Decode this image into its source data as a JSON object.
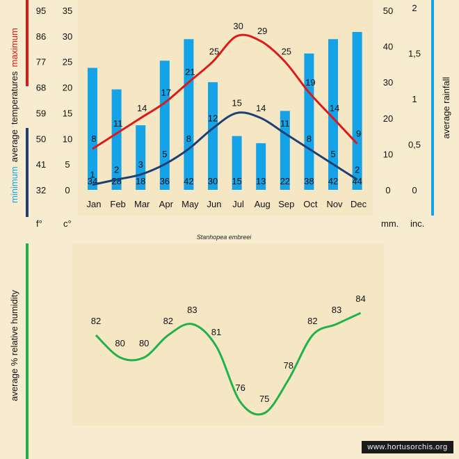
{
  "chart_data": [
    {
      "type": "bar",
      "title": "",
      "categories": [
        "Jan",
        "Feb",
        "Mar",
        "Apr",
        "May",
        "Jun",
        "Jul",
        "Aug",
        "Sep",
        "Oct",
        "Nov",
        "Dec"
      ],
      "rainfall": {
        "name": "average rainfall",
        "color": "#14a3e6",
        "values_mm": [
          34,
          28,
          18,
          36,
          42,
          30,
          15,
          13,
          22,
          38,
          42,
          44
        ],
        "axis_mm": {
          "min": 0,
          "max": 50,
          "ticks": [
            "0",
            "10",
            "20",
            "30",
            "40",
            "50"
          ]
        },
        "axis_inches": {
          "ticks": [
            "0",
            "0,5",
            "1",
            "1,5",
            "2"
          ]
        }
      },
      "temperature_max": {
        "name": "maximum",
        "color": "#dd1a1a",
        "values_c": [
          8,
          11,
          14,
          17,
          21,
          25,
          30,
          29,
          25,
          19,
          14,
          9
        ]
      },
      "temperature_min": {
        "name": "minimum",
        "color": "#1f3f74",
        "values_c": [
          1,
          2,
          3,
          5,
          8,
          12,
          15,
          14,
          11,
          8,
          5,
          2
        ]
      },
      "axis_c": {
        "min": 0,
        "max": 35,
        "ticks": [
          "0",
          "5",
          "10",
          "15",
          "20",
          "25",
          "30",
          "35"
        ]
      },
      "axis_f": {
        "ticks": [
          "32",
          "41",
          "50",
          "59",
          "68",
          "77",
          "86",
          "95"
        ]
      },
      "unit_labels": {
        "fahrenheit": "f°",
        "celsius": "c°",
        "mm": "mm.",
        "inches": "inc."
      },
      "left_axis_title": {
        "minimum": "minimum",
        "middle": "average  temperatures",
        "maximum": "maximum"
      },
      "right_axis_title": "average rainfall",
      "legend_colors": {
        "min_bar": "#1f3f74",
        "max_bar": "#dd1a1a",
        "rain_bar": "#14a3e6"
      }
    },
    {
      "type": "line",
      "title": "",
      "categories": [
        "Jan",
        "Feb",
        "Mar",
        "Apr",
        "May",
        "Jun",
        "Jul",
        "Aug",
        "Sep",
        "Oct",
        "Nov",
        "Dec"
      ],
      "humidity": {
        "name": "average relative humidity",
        "color": "#21b14a",
        "values": [
          82,
          80,
          80,
          82,
          83,
          81,
          76,
          75,
          78,
          82,
          83,
          84
        ],
        "range": [
          72,
          88
        ]
      },
      "axis_title": "average %  relative humidity",
      "axis_color": "#21b14a"
    }
  ],
  "species_name": "Stanhopea embreei",
  "watermark": "www.hortusorchis.org"
}
